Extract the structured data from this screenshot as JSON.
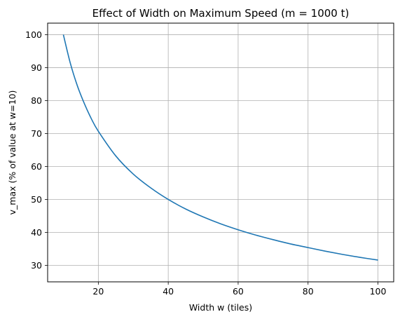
{
  "chart_data": {
    "type": "line",
    "title": "Effect of Width on Maximum Speed (m = 1000 t)",
    "xlabel": "Width w (tiles)",
    "ylabel": "v_max (% of value at w=10)",
    "xlim": [
      5.5,
      104.5
    ],
    "ylim": [
      25.0,
      103.5
    ],
    "xticks": [
      20,
      40,
      60,
      80,
      100
    ],
    "yticks": [
      30,
      40,
      50,
      60,
      70,
      80,
      90,
      100
    ],
    "grid": true,
    "legend": "none",
    "series": [
      {
        "color": "#1f77b4",
        "x": [
          10,
          12,
          14,
          16,
          18,
          20,
          25,
          30,
          35,
          40,
          45,
          50,
          55,
          60,
          65,
          70,
          75,
          80,
          85,
          90,
          95,
          100
        ],
        "y": [
          100,
          91.3,
          84.5,
          79.1,
          74.5,
          70.7,
          63.2,
          57.7,
          53.5,
          50.0,
          47.1,
          44.7,
          42.6,
          40.8,
          39.2,
          37.8,
          36.5,
          35.4,
          34.3,
          33.3,
          32.4,
          31.6
        ]
      }
    ]
  }
}
